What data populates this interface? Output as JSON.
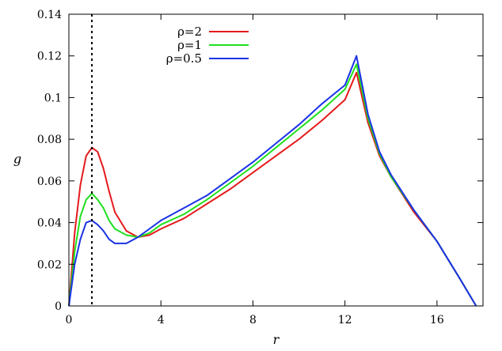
{
  "chart_data": {
    "type": "line",
    "title": "",
    "xlabel": "r",
    "ylabel": "g",
    "xlim": [
      0,
      18
    ],
    "ylim": [
      0,
      0.14
    ],
    "xticks": [
      0,
      4,
      8,
      12,
      16
    ],
    "xtick_labels": [
      "0",
      "4",
      "8",
      "12",
      "16"
    ],
    "yticks": [
      0,
      0.02,
      0.04,
      0.06,
      0.08,
      0.1,
      0.12,
      0.14
    ],
    "ytick_labels": [
      "0",
      "0.02",
      "0.04",
      "0.06",
      "0.08",
      "0.1",
      "0.12",
      "0.14"
    ],
    "grid": false,
    "legend_position": "top-center",
    "reference_line": {
      "x": 1,
      "style": "dotted"
    },
    "series": [
      {
        "name": "ρ=2",
        "color": "#e41a1c",
        "x": [
          0,
          0.25,
          0.5,
          0.75,
          1.0,
          1.25,
          1.5,
          1.75,
          2.0,
          2.5,
          3.0,
          3.5,
          4,
          5,
          6,
          7,
          8,
          9,
          10,
          11,
          12,
          12.5,
          13,
          13.5,
          14,
          15,
          16,
          17,
          17.7
        ],
        "values": [
          0,
          0.035,
          0.058,
          0.072,
          0.076,
          0.074,
          0.066,
          0.055,
          0.045,
          0.036,
          0.033,
          0.034,
          0.037,
          0.042,
          0.049,
          0.056,
          0.064,
          0.072,
          0.08,
          0.089,
          0.099,
          0.112,
          0.088,
          0.072,
          0.062,
          0.045,
          0.031,
          0.013,
          0
        ]
      },
      {
        "name": "ρ=1",
        "color": "#1fe01f",
        "x": [
          0,
          0.25,
          0.5,
          0.75,
          1.0,
          1.25,
          1.5,
          1.75,
          2.0,
          2.5,
          3.0,
          3.5,
          4,
          5,
          6,
          7,
          8,
          9,
          10,
          11,
          12,
          12.5,
          13,
          13.5,
          14,
          15,
          16,
          17,
          17.7
        ],
        "values": [
          0,
          0.026,
          0.043,
          0.051,
          0.054,
          0.051,
          0.047,
          0.041,
          0.037,
          0.034,
          0.033,
          0.035,
          0.039,
          0.044,
          0.051,
          0.059,
          0.067,
          0.076,
          0.085,
          0.094,
          0.104,
          0.116,
          0.09,
          0.073,
          0.062,
          0.046,
          0.031,
          0.013,
          0
        ]
      },
      {
        "name": "ρ=0.5",
        "color": "#1a32e6",
        "x": [
          0,
          0.25,
          0.5,
          0.75,
          1.0,
          1.25,
          1.5,
          1.75,
          2.0,
          2.5,
          3.0,
          3.5,
          4,
          5,
          6,
          7,
          8,
          9,
          10,
          11,
          12,
          12.5,
          13,
          13.5,
          14,
          15,
          16,
          17,
          17.7
        ],
        "values": [
          0,
          0.02,
          0.032,
          0.04,
          0.041,
          0.039,
          0.036,
          0.032,
          0.03,
          0.03,
          0.033,
          0.037,
          0.041,
          0.047,
          0.053,
          0.061,
          0.069,
          0.078,
          0.087,
          0.097,
          0.106,
          0.12,
          0.092,
          0.074,
          0.063,
          0.046,
          0.031,
          0.013,
          0
        ]
      }
    ]
  }
}
